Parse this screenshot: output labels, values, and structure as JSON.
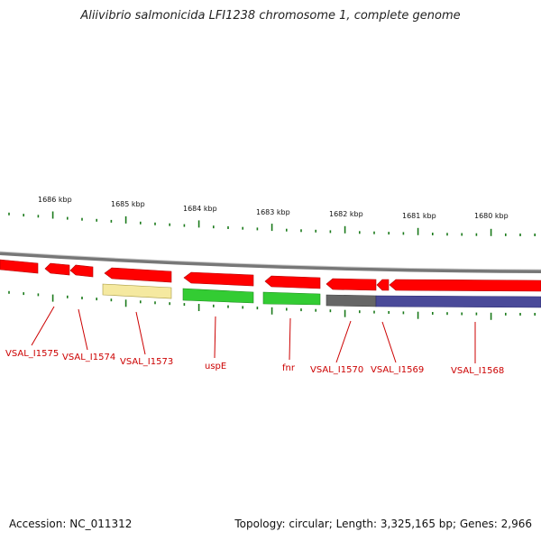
{
  "title": "Aliivibrio salmonicida LFI1238 chromosome 1, complete genome",
  "accession_text": "Accession: NC_011312",
  "topology_text": "Topology: circular; Length: 3,325,165 bp; Genes: 2,966",
  "scale_labels": [
    "1686 kbp",
    "1685 kbp",
    "1684 kbp",
    "1683 kbp",
    "1682 kbp",
    "1681 kbp",
    "1680 kbp"
  ],
  "gene_labels": [
    "VSAL_I1575",
    "VSAL_I1574",
    "VSAL_I1573",
    "uspE",
    "fnr",
    "VSAL_I1570",
    "VSAL_I1569",
    "VSAL_I1568"
  ],
  "colors": {
    "cds_forward": "#ff0000",
    "cds_reverse_yellow": "#f5e9a0",
    "cds_green": "#33cc33",
    "cds_gray": "#666666",
    "cds_blue": "#4a4a99",
    "backbone": "#888888",
    "tick": "#1a7a1a",
    "label": "#cc0000"
  }
}
